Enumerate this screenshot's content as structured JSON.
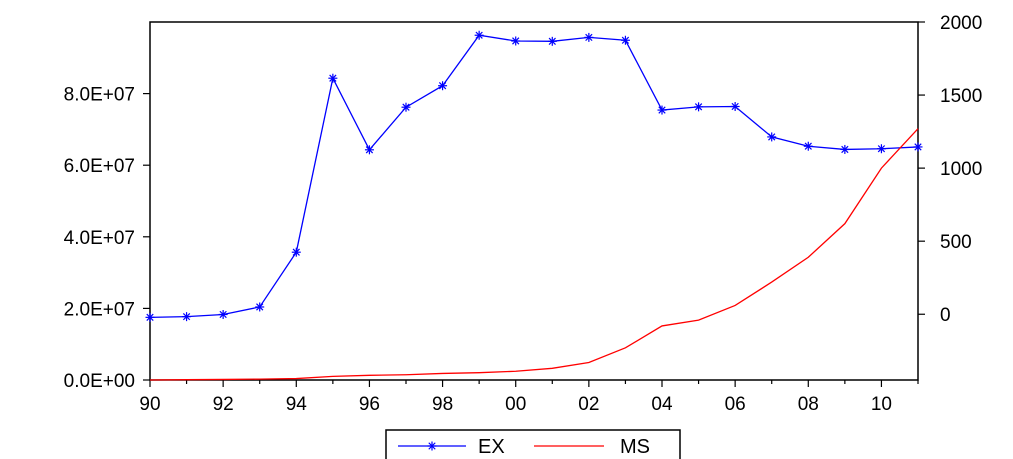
{
  "chart_data": {
    "type": "line",
    "x": [
      "90",
      "91",
      "92",
      "93",
      "94",
      "95",
      "96",
      "97",
      "98",
      "99",
      "00",
      "01",
      "02",
      "03",
      "04",
      "05",
      "06",
      "07",
      "08",
      "09",
      "10",
      "11"
    ],
    "x_tick_labels": [
      "90",
      "92",
      "94",
      "96",
      "98",
      "00",
      "02",
      "04",
      "06",
      "08",
      "10"
    ],
    "y_left_ticks": [
      "0.0E+00",
      "2.0E+07",
      "4.0E+07",
      "6.0E+07",
      "8.0E+07"
    ],
    "y_right_ticks": [
      "0",
      "500",
      "1000",
      "1500",
      "2000"
    ],
    "y_left_lim": [
      0,
      100000000
    ],
    "y_right_lim": [
      -450,
      2000
    ],
    "series": [
      {
        "name": "EX",
        "axis": "left",
        "color": "#0000ff",
        "marker": "asterisk",
        "values": [
          17500000,
          17700000,
          18300000,
          20400000,
          35700000,
          84300000,
          64300000,
          76200000,
          82200000,
          96300000,
          94700000,
          94600000,
          95700000,
          94900000,
          75400000,
          76300000,
          76400000,
          67900000,
          65300000,
          64400000,
          64600000,
          65100000
        ]
      },
      {
        "name": "MS",
        "axis": "right",
        "color": "#ff0000",
        "marker": "none",
        "values": [
          -450,
          -448,
          -446,
          -444,
          -440,
          -425,
          -418,
          -414,
          -405,
          -400,
          -390,
          -370,
          -330,
          -230,
          -80,
          -40,
          60,
          220,
          390,
          620,
          1000,
          1270
        ]
      }
    ],
    "legend_position": "bottom-center",
    "grid": false
  }
}
